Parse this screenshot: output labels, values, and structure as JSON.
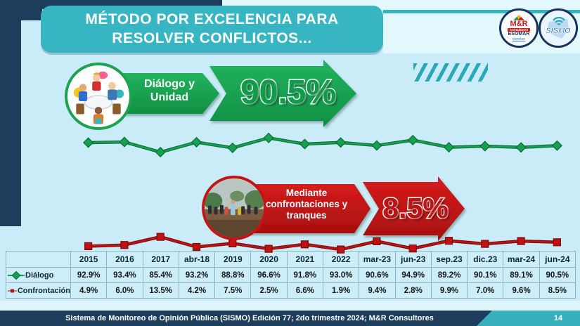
{
  "title": "MÉTODO POR EXCELENCIA PARA RESOLVER CONFLICTOS...",
  "logos": {
    "mr": {
      "name": "M&R",
      "sub": "Consultores",
      "org": "ESOMAR",
      "member": "member"
    },
    "sismo": {
      "name": "SISMO"
    }
  },
  "dialog_banner": {
    "label": "Diálogo y Unidad",
    "value": "90.5%"
  },
  "confrontation_banner": {
    "label": "Mediante confrontaciones y tranques",
    "value": "8.5%"
  },
  "chart_data": {
    "type": "line",
    "title": "Método por excelencia para resolver conflictos",
    "categories": [
      "2015",
      "2016",
      "2017",
      "abr-18",
      "2019",
      "2020",
      "2021",
      "2022",
      "mar-23",
      "jun-23",
      "sep.23",
      "dic.23",
      "mar-24",
      "jun-24"
    ],
    "series": [
      {
        "name": "Diálogo",
        "marker": "diamond",
        "color": "#16a050",
        "dark": "#0a6e35",
        "values": [
          92.9,
          93.4,
          85.4,
          93.2,
          88.8,
          96.6,
          91.8,
          93.0,
          90.6,
          94.9,
          89.2,
          90.1,
          89.1,
          90.5
        ]
      },
      {
        "name": "Confrontación",
        "marker": "square",
        "color": "#c01212",
        "dark": "#7c0a0a",
        "values": [
          4.9,
          6.0,
          13.5,
          4.2,
          7.5,
          2.5,
          6.6,
          1.9,
          9.4,
          2.8,
          9.9,
          7.0,
          9.6,
          8.5
        ]
      }
    ],
    "value_format": "percent_one_decimal",
    "legend_position": "table-left",
    "grid": false,
    "ylim_dialog": [
      85,
      97
    ],
    "ylim_confrontation": [
      0,
      14
    ]
  },
  "footer": {
    "text": "Sistema de Monitoreo de Opinión Pública (SISMO) Edición 77; 2do trimestre 2024; M&R Consultores",
    "page": "14"
  },
  "colors": {
    "navy": "#1c3d5c",
    "teal": "#38b5c2",
    "panel": "#c9ecf8",
    "green": "#16a050",
    "red": "#c01212"
  }
}
